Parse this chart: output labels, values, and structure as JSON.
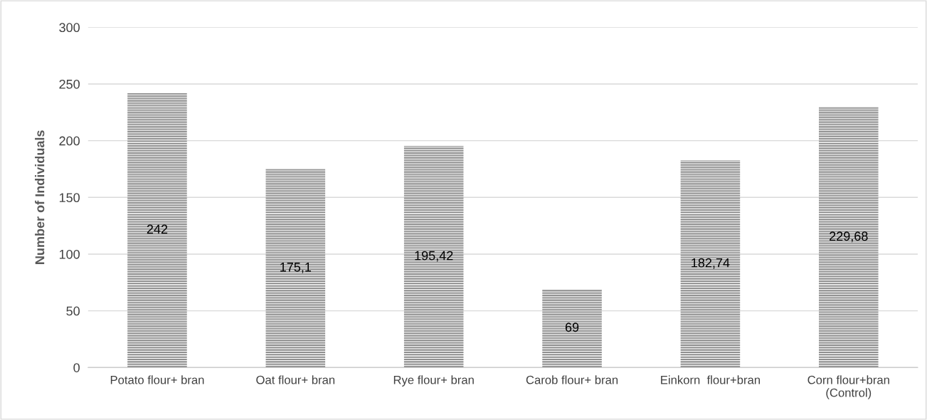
{
  "chart_data": {
    "type": "bar",
    "ylabel": "Number of Individuals",
    "categories": [
      "Potato flour+ bran",
      "Oat flour+ bran",
      "Rye flour+ bran",
      "Carob flour+ bran",
      "Einkorn  flour+bran",
      "Corn flour+bran\n(Control)"
    ],
    "values": [
      242,
      175.1,
      195.42,
      69,
      182.74,
      229.68
    ],
    "value_labels": [
      "242",
      "175,1",
      "195,42",
      "69",
      "182,74",
      "229,68"
    ],
    "color": "#8c8c8c",
    "ylim": [
      0,
      300
    ],
    "yticks": [
      0,
      50,
      100,
      150,
      200,
      250,
      300
    ],
    "grid": "y",
    "legend": false
  }
}
